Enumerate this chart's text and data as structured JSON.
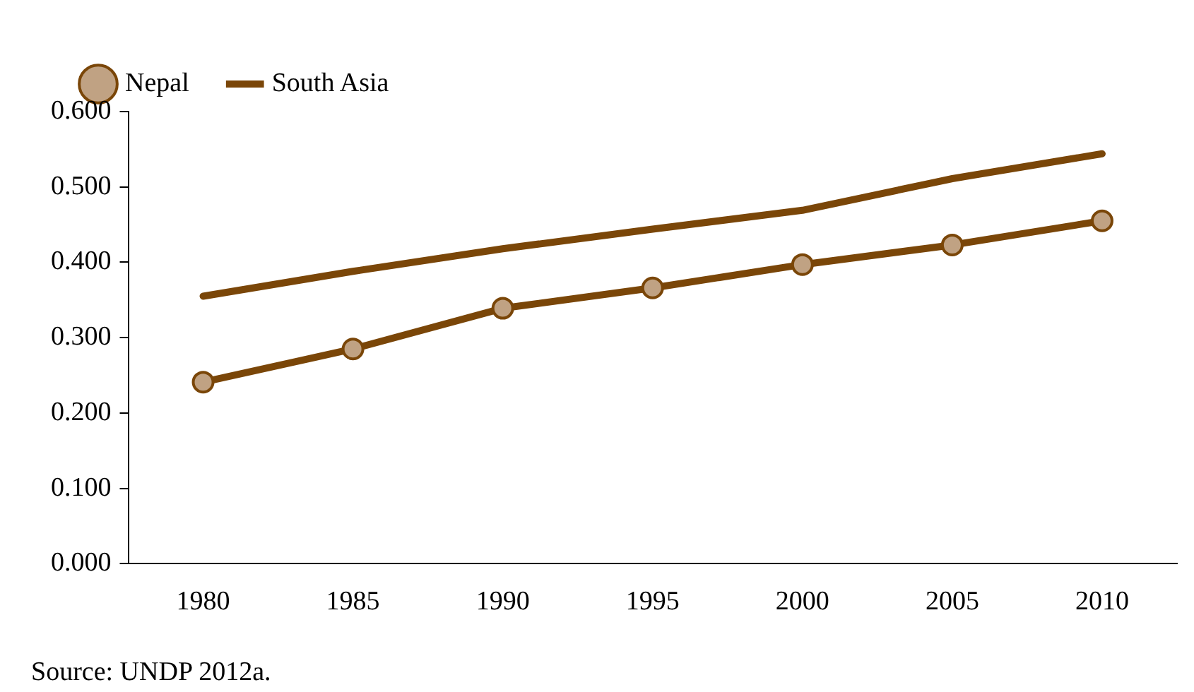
{
  "chart_data": {
    "type": "line",
    "categories": [
      "1980",
      "1985",
      "1990",
      "1995",
      "2000",
      "2005",
      "2010"
    ],
    "series": [
      {
        "name": "Nepal",
        "color": "#7a4608",
        "marker": "circle",
        "values": [
          0.241,
          0.285,
          0.339,
          0.366,
          0.397,
          0.423,
          0.455
        ]
      },
      {
        "name": "South Asia",
        "color": "#7a4608",
        "marker": "none",
        "values": [
          0.355,
          0.388,
          0.418,
          0.444,
          0.469,
          0.511,
          0.544
        ]
      }
    ],
    "ylim": [
      0,
      0.6
    ],
    "yticks": [
      {
        "value": 0,
        "label": "0.000"
      },
      {
        "value": 0.1,
        "label": "0.100"
      },
      {
        "value": 0.2,
        "label": "0.200"
      },
      {
        "value": 0.3,
        "label": "0.300"
      },
      {
        "value": 0.4,
        "label": "0.400"
      },
      {
        "value": 0.5,
        "label": "0.500"
      },
      {
        "value": 0.6,
        "label": "0.600"
      }
    ],
    "grid": false,
    "legend": "top left",
    "line_style": "solid",
    "annotations": [
      "Source: UNDP 2012a."
    ]
  }
}
